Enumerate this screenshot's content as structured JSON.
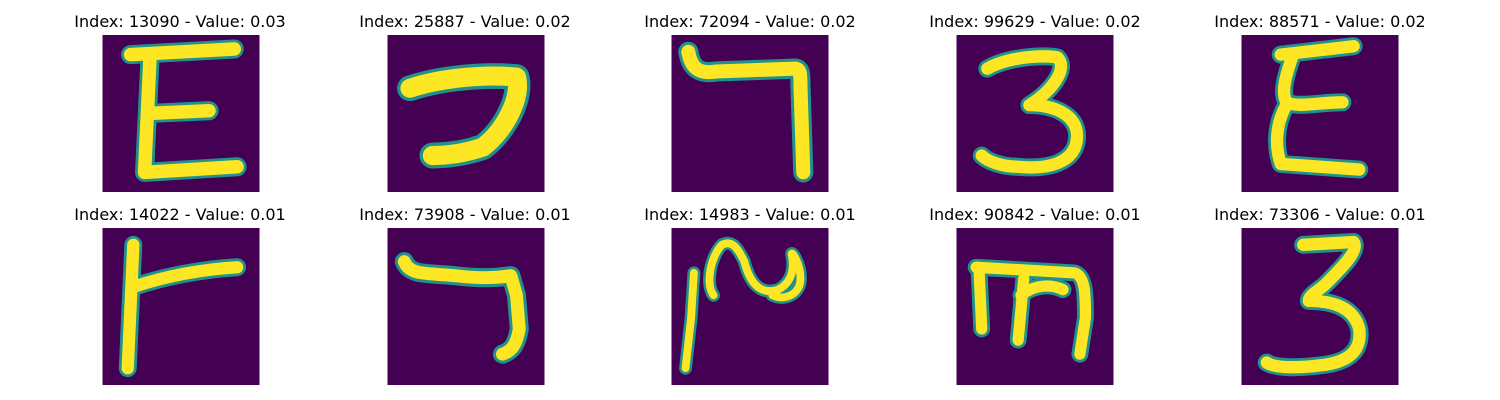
{
  "figure": {
    "background": "#ffffff",
    "colors": {
      "image_background": "#440154",
      "stroke_fill": "#fde725",
      "stroke_edge": "#21918c",
      "title_text": "#000000"
    },
    "grid": {
      "rows": 2,
      "cols": 5
    },
    "panels": [
      {
        "title": "Index: 13090 - Value: 0.03",
        "glyph": "epsilon-shape"
      },
      {
        "title": "Index: 25887 - Value: 0.02",
        "glyph": "reversed-c-hook"
      },
      {
        "title": "Index: 72094 - Value: 0.02",
        "glyph": "gamma-hook"
      },
      {
        "title": "Index: 99629 - Value: 0.02",
        "glyph": "three-shape"
      },
      {
        "title": "Index: 88571 - Value: 0.02",
        "glyph": "epsilon-wavy"
      },
      {
        "title": "Index: 14022 - Value: 0.01",
        "glyph": "left-t-shape"
      },
      {
        "title": "Index: 73908 - Value: 0.01",
        "glyph": "seven-hook"
      },
      {
        "title": "Index: 14983 - Value: 0.01",
        "glyph": "wave-stroke"
      },
      {
        "title": "Index: 90842 - Value: 0.01",
        "glyph": "m-shape"
      },
      {
        "title": "Index: 73306 - Value: 0.01",
        "glyph": "three-shape"
      }
    ]
  }
}
